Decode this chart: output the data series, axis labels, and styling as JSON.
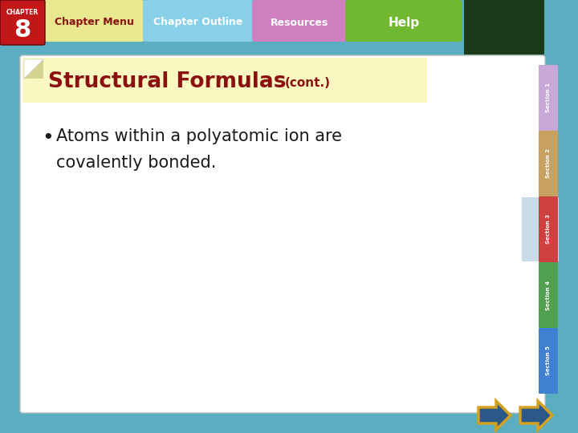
{
  "bg_color": "#5aaec0",
  "slide_bg": "#ffffff",
  "title_text": "Structural Formulas",
  "title_cont": "(cont.)",
  "title_color": "#8b1010",
  "title_bg": "#f8f8c0",
  "bullet_text_line1": "Atoms within a polyatomic ion are",
  "bullet_text_line2": "covalently bonded.",
  "bullet_color": "#1a1a1a",
  "nav_bar_bg": "#5aaec0",
  "chapter_bg": "#c01818",
  "chapter_menu_bg": "#e8e890",
  "chapter_menu_color": "#8b1010",
  "chapter_outline_bg": "#88d0e8",
  "chapter_outline_color": "#ffffff",
  "resources_bg": "#d080c0",
  "resources_color": "#ffffff",
  "help_bg": "#70b830",
  "help_color": "#ffffff",
  "chapter_num": "8",
  "chapter_label": "CHAPTER",
  "section1_color": "#c8a8d8",
  "section2_color": "#c8a060",
  "section3_color": "#d04040",
  "section3_highlight": "#c8dce8",
  "section4_color": "#50a050",
  "section5_color": "#4080d0",
  "arrow_color": "#2a5888",
  "arrow_highlight": "#d4a020"
}
